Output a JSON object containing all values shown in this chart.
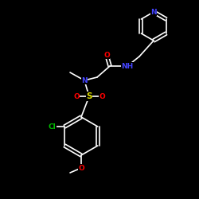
{
  "background": "#000000",
  "bond_color": "#ffffff",
  "atom_colors": {
    "N": "#4444ff",
    "O": "#ff0000",
    "S": "#e0e000",
    "Cl": "#00bb00",
    "C": "#ffffff"
  },
  "figsize": [
    2.5,
    2.5
  ],
  "dpi": 100,
  "lw": 1.2,
  "font_size": 6.5
}
